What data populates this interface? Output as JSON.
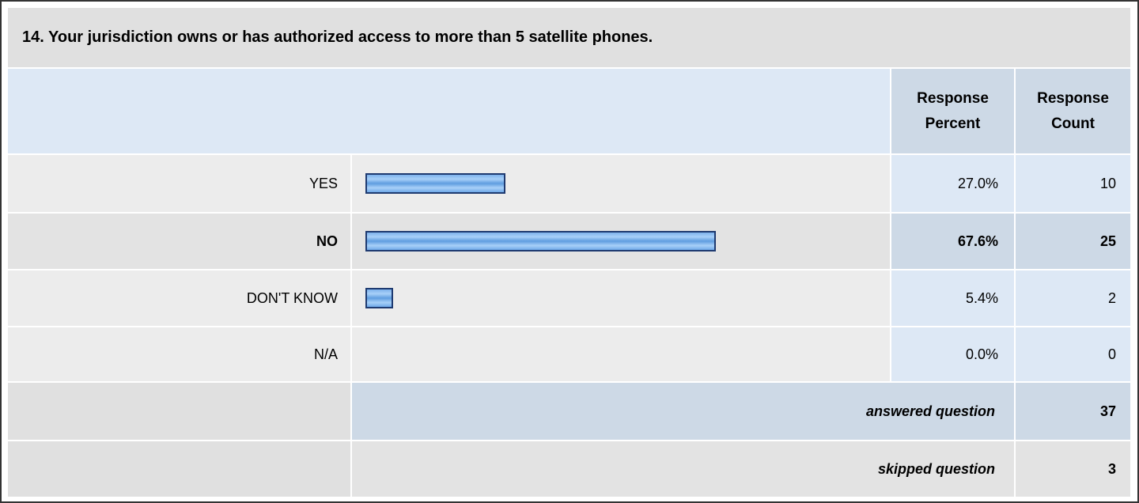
{
  "question": {
    "title": "14. Your jurisdiction owns or has authorized access to more than 5 satellite phones."
  },
  "headers": {
    "response_percent": "Response Percent",
    "response_count": "Response Count"
  },
  "rows": [
    {
      "label": "YES",
      "percent": "27.0%",
      "count": "10",
      "highlight": false
    },
    {
      "label": "NO",
      "percent": "67.6%",
      "count": "25",
      "highlight": true
    },
    {
      "label": "DON'T KNOW",
      "percent": "5.4%",
      "count": "2",
      "highlight": false
    },
    {
      "label": "N/A",
      "percent": "0.0%",
      "count": "0",
      "highlight": false
    }
  ],
  "summary": {
    "answered_label": "answered question",
    "answered_count": "37",
    "skipped_label": "skipped question",
    "skipped_count": "3"
  },
  "chart_data": {
    "type": "bar",
    "orientation": "horizontal",
    "categories": [
      "YES",
      "NO",
      "DON'T KNOW",
      "N/A"
    ],
    "values": [
      27.0,
      67.6,
      5.4,
      0.0
    ],
    "counts": [
      10,
      25,
      2,
      0
    ],
    "unit": "%",
    "xlim": [
      0,
      100
    ],
    "bar_color": "#7eb2ec",
    "bar_border_color": "#1e3a70"
  }
}
